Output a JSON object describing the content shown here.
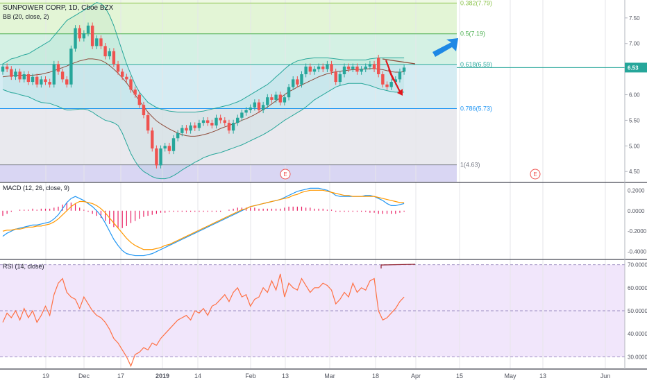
{
  "header": {
    "symbol_line": "SUNPOWER CORP, 1D, Cboe BZX",
    "indicator_line": "BB (20, close, 2)"
  },
  "macd_header": "MACD (12, 26, close, 9)",
  "rsi_header": "RSI (14, close)",
  "price_badge": "6.53",
  "earnings_marker": "E",
  "colors": {
    "up": "#26a69a",
    "down": "#ef5350",
    "bb_band": "#26a69a",
    "bb_basis": "#8d4a3a",
    "macd_line": "#2196f3",
    "signal_line": "#ff9800",
    "histogram": "#e91e63",
    "rsi_line": "#ff7043",
    "rsi_bg": "#f1e6fb",
    "annotation_red": "#e0171b",
    "annotation_blue": "#1e88e5"
  },
  "chart_data": [
    {
      "type": "candlestick",
      "title": "SUNPOWER CORP, 1D, Cboe BZX",
      "x_tick_labels": [
        "19",
        "Dec",
        "17",
        "2019",
        "14",
        "Feb",
        "13",
        "Mar",
        "18",
        "Apr",
        "15",
        "May",
        "13",
        "Jun"
      ],
      "y_tick_labels": [
        "7.50",
        "7.00",
        "6.50",
        "6.00",
        "5.50",
        "5.00",
        "4.50"
      ],
      "ylim": [
        4.3,
        7.85
      ],
      "fib_levels": [
        {
          "ratio": "0.382",
          "price": 7.79,
          "label": "0.382(7.79)",
          "color": "#8bc34a"
        },
        {
          "ratio": "0.5",
          "price": 7.19,
          "label": "0.5(7.19)",
          "color": "#4caf50"
        },
        {
          "ratio": "0.618",
          "price": 6.59,
          "label": "0.618(6.59)",
          "color": "#26a69a"
        },
        {
          "ratio": "0.786",
          "price": 5.73,
          "label": "0.786(5.73)",
          "color": "#2196f3"
        },
        {
          "ratio": "1",
          "price": 4.63,
          "label": "1(4.63)",
          "color": "#787b86"
        }
      ],
      "series": [
        {
          "name": "price",
          "close": [
            6.55,
            6.5,
            6.35,
            6.45,
            6.3,
            6.4,
            6.25,
            6.35,
            6.2,
            6.3,
            6.25,
            6.2,
            6.6,
            6.45,
            6.3,
            6.2,
            6.9,
            7.3,
            7.1,
            7.2,
            7.35,
            6.95,
            7.1,
            6.95,
            6.75,
            6.85,
            6.6,
            6.45,
            6.35,
            6.3,
            6.1,
            6.0,
            5.8,
            5.6,
            5.3,
            4.95,
            4.62,
            4.95,
            5.0,
            4.9,
            5.15,
            5.25,
            5.35,
            5.3,
            5.4,
            5.35,
            5.45,
            5.5,
            5.45,
            5.4,
            5.55,
            5.5,
            5.45,
            5.3,
            5.45,
            5.55,
            5.65,
            5.7,
            5.75,
            5.85,
            5.7,
            5.8,
            5.95,
            5.9,
            6.0,
            5.85,
            5.95,
            6.15,
            6.3,
            6.2,
            6.4,
            6.55,
            6.45,
            6.5,
            6.55,
            6.5,
            6.6,
            6.45,
            6.25,
            6.4,
            6.55,
            6.5,
            6.55,
            6.45,
            6.5,
            6.55,
            6.6,
            6.5,
            6.4,
            6.2,
            6.15,
            6.25,
            6.3,
            6.45,
            6.53
          ],
          "open": [
            6.45,
            6.55,
            6.5,
            6.35,
            6.45,
            6.3,
            6.4,
            6.25,
            6.35,
            6.2,
            6.3,
            6.25,
            6.2,
            6.6,
            6.45,
            6.3,
            6.2,
            6.9,
            7.3,
            7.1,
            7.2,
            7.35,
            6.95,
            7.1,
            6.95,
            6.75,
            6.85,
            6.6,
            6.45,
            6.35,
            6.3,
            6.1,
            6.0,
            5.8,
            5.6,
            5.3,
            4.95,
            4.62,
            4.95,
            5.0,
            4.9,
            5.15,
            5.25,
            5.35,
            5.3,
            5.4,
            5.35,
            5.45,
            5.5,
            5.45,
            5.4,
            5.55,
            5.5,
            5.45,
            5.3,
            5.45,
            5.55,
            5.65,
            5.7,
            5.75,
            5.85,
            5.7,
            5.8,
            5.95,
            5.9,
            6.0,
            5.85,
            5.95,
            6.15,
            6.3,
            6.2,
            6.4,
            6.55,
            6.45,
            6.5,
            6.55,
            6.5,
            6.6,
            6.45,
            6.25,
            6.4,
            6.55,
            6.5,
            6.55,
            6.45,
            6.5,
            6.55,
            6.6,
            6.72,
            6.4,
            6.2,
            6.15,
            6.25,
            6.3,
            6.45
          ]
        },
        {
          "name": "bb_upper",
          "values": [
            6.6,
            6.65,
            6.7,
            6.72,
            6.75,
            6.78,
            6.8,
            6.85,
            6.9,
            6.95,
            7.0,
            7.05,
            7.15,
            7.25,
            7.35,
            7.45,
            7.5,
            7.55,
            7.6,
            7.65,
            7.7,
            7.75,
            7.8,
            7.78,
            7.7,
            7.55,
            7.35,
            7.1,
            6.85,
            6.6,
            6.4,
            6.2,
            6.05,
            5.95,
            5.85,
            5.8,
            5.75,
            5.72,
            5.7,
            5.68,
            5.67,
            5.66,
            5.66,
            5.66,
            5.66,
            5.66,
            5.67,
            5.68,
            5.7,
            5.72,
            5.74,
            5.76,
            5.78,
            5.8,
            5.83,
            5.86,
            5.9,
            5.95,
            6.0,
            6.05,
            6.1,
            6.15,
            6.2,
            6.27,
            6.35,
            6.42,
            6.5,
            6.57,
            6.62,
            6.66,
            6.68,
            6.7,
            6.71,
            6.72,
            6.72,
            6.72,
            6.72,
            6.71,
            6.7,
            6.69,
            6.68,
            6.68,
            6.68,
            6.68,
            6.68,
            6.68,
            6.7,
            6.71,
            6.72,
            6.72,
            6.72,
            6.72,
            6.72,
            6.72,
            6.72
          ]
        },
        {
          "name": "bb_basis",
          "values": [
            6.35,
            6.36,
            6.37,
            6.38,
            6.38,
            6.38,
            6.38,
            6.38,
            6.39,
            6.4,
            6.42,
            6.44,
            6.47,
            6.5,
            6.53,
            6.56,
            6.6,
            6.63,
            6.66,
            6.68,
            6.7,
            6.7,
            6.69,
            6.67,
            6.63,
            6.57,
            6.5,
            6.42,
            6.33,
            6.23,
            6.12,
            6.0,
            5.88,
            5.77,
            5.66,
            5.57,
            5.49,
            5.43,
            5.38,
            5.33,
            5.29,
            5.25,
            5.22,
            5.2,
            5.19,
            5.19,
            5.2,
            5.22,
            5.24,
            5.27,
            5.3,
            5.34,
            5.37,
            5.4,
            5.43,
            5.46,
            5.5,
            5.53,
            5.57,
            5.61,
            5.66,
            5.71,
            5.76,
            5.82,
            5.88,
            5.94,
            6.0,
            6.06,
            6.1,
            6.15,
            6.19,
            6.23,
            6.27,
            6.31,
            6.35,
            6.38,
            6.41,
            6.43,
            6.45,
            6.46,
            6.47,
            6.48,
            6.49,
            6.49,
            6.5,
            6.5,
            6.51,
            6.51,
            6.5,
            6.49,
            6.47,
            6.45,
            6.44,
            6.44,
            6.45
          ]
        },
        {
          "name": "bb_lower",
          "values": [
            6.1,
            6.07,
            6.04,
            6.03,
            6.0,
            5.98,
            5.96,
            5.92,
            5.88,
            5.85,
            5.84,
            5.83,
            5.8,
            5.77,
            5.73,
            5.7,
            5.7,
            5.71,
            5.72,
            5.72,
            5.7,
            5.66,
            5.6,
            5.55,
            5.5,
            5.48,
            5.45,
            5.4,
            5.25,
            5.05,
            4.85,
            4.7,
            4.58,
            4.5,
            4.45,
            4.4,
            4.37,
            4.36,
            4.36,
            4.38,
            4.42,
            4.47,
            4.53,
            4.58,
            4.63,
            4.68,
            4.72,
            4.77,
            4.8,
            4.83,
            4.85,
            4.87,
            4.9,
            4.93,
            4.96,
            4.99,
            5.02,
            5.06,
            5.1,
            5.14,
            5.18,
            5.22,
            5.27,
            5.32,
            5.38,
            5.44,
            5.5,
            5.55,
            5.6,
            5.65,
            5.7,
            5.76,
            5.83,
            5.9,
            5.95,
            6.0,
            6.05,
            6.1,
            6.15,
            6.18,
            6.2,
            6.22,
            6.22,
            6.22,
            6.22,
            6.2,
            6.18,
            6.15,
            6.12,
            6.1,
            6.08,
            6.06,
            6.05,
            6.05,
            6.05
          ]
        }
      ]
    },
    {
      "type": "line",
      "title": "MACD (12, 26, close, 9)",
      "y_tick_labels": [
        "0.2000",
        "0.0000",
        "-0.2000",
        "-0.4000"
      ],
      "ylim": [
        -0.47,
        0.27
      ],
      "series": [
        {
          "name": "macd",
          "values": [
            -0.25,
            -0.22,
            -0.2,
            -0.18,
            -0.17,
            -0.16,
            -0.15,
            -0.14,
            -0.14,
            -0.13,
            -0.12,
            -0.11,
            -0.08,
            -0.04,
            0.02,
            0.08,
            0.12,
            0.14,
            0.12,
            0.1,
            0.07,
            0.04,
            0.0,
            -0.05,
            -0.12,
            -0.2,
            -0.28,
            -0.34,
            -0.39,
            -0.42,
            -0.43,
            -0.44,
            -0.44,
            -0.44,
            -0.43,
            -0.42,
            -0.4,
            -0.38,
            -0.36,
            -0.34,
            -0.32,
            -0.3,
            -0.28,
            -0.26,
            -0.24,
            -0.22,
            -0.2,
            -0.18,
            -0.16,
            -0.14,
            -0.12,
            -0.1,
            -0.08,
            -0.06,
            -0.04,
            -0.02,
            0.0,
            0.02,
            0.04,
            0.05,
            0.06,
            0.07,
            0.08,
            0.09,
            0.1,
            0.11,
            0.13,
            0.15,
            0.17,
            0.19,
            0.2,
            0.21,
            0.22,
            0.22,
            0.22,
            0.21,
            0.2,
            0.18,
            0.15,
            0.14,
            0.14,
            0.14,
            0.14,
            0.14,
            0.14,
            0.15,
            0.15,
            0.14,
            0.12,
            0.1,
            0.07,
            0.05,
            0.05,
            0.06,
            0.07
          ]
        },
        {
          "name": "signal",
          "values": [
            -0.2,
            -0.19,
            -0.19,
            -0.18,
            -0.18,
            -0.17,
            -0.16,
            -0.16,
            -0.15,
            -0.15,
            -0.14,
            -0.13,
            -0.11,
            -0.08,
            -0.04,
            0.0,
            0.04,
            0.07,
            0.09,
            0.09,
            0.08,
            0.07,
            0.05,
            0.02,
            -0.02,
            -0.07,
            -0.12,
            -0.17,
            -0.22,
            -0.27,
            -0.31,
            -0.34,
            -0.36,
            -0.38,
            -0.38,
            -0.38,
            -0.37,
            -0.36,
            -0.34,
            -0.33,
            -0.31,
            -0.29,
            -0.27,
            -0.25,
            -0.23,
            -0.21,
            -0.19,
            -0.17,
            -0.15,
            -0.13,
            -0.11,
            -0.09,
            -0.07,
            -0.05,
            -0.03,
            -0.01,
            0.01,
            0.02,
            0.04,
            0.05,
            0.06,
            0.07,
            0.08,
            0.09,
            0.1,
            0.11,
            0.12,
            0.13,
            0.15,
            0.16,
            0.18,
            0.19,
            0.2,
            0.2,
            0.2,
            0.2,
            0.19,
            0.18,
            0.17,
            0.16,
            0.15,
            0.15,
            0.14,
            0.14,
            0.14,
            0.14,
            0.14,
            0.14,
            0.13,
            0.12,
            0.11,
            0.1,
            0.09,
            0.08,
            0.08
          ]
        },
        {
          "name": "histogram",
          "values": [
            -0.05,
            -0.03,
            -0.01,
            0.0,
            0.01,
            0.01,
            0.01,
            0.02,
            0.01,
            0.02,
            0.02,
            0.02,
            0.03,
            0.04,
            0.06,
            0.08,
            0.08,
            0.07,
            0.03,
            0.01,
            -0.01,
            -0.03,
            -0.05,
            -0.07,
            -0.1,
            -0.13,
            -0.16,
            -0.17,
            -0.17,
            -0.15,
            -0.12,
            -0.1,
            -0.08,
            -0.06,
            -0.05,
            -0.04,
            -0.03,
            -0.02,
            -0.02,
            -0.01,
            -0.01,
            -0.01,
            -0.01,
            -0.01,
            -0.01,
            -0.01,
            -0.01,
            -0.01,
            -0.01,
            -0.01,
            -0.01,
            -0.01,
            0.0,
            0.01,
            0.02,
            0.03,
            0.03,
            0.03,
            0.03,
            0.03,
            0.02,
            0.02,
            0.02,
            0.02,
            0.02,
            0.02,
            0.03,
            0.04,
            0.04,
            0.04,
            0.04,
            0.03,
            0.03,
            0.02,
            0.02,
            0.02,
            0.01,
            0.01,
            -0.01,
            -0.01,
            -0.01,
            -0.01,
            -0.01,
            -0.01,
            -0.01,
            -0.01,
            -0.02,
            -0.02,
            -0.03,
            -0.03,
            -0.03,
            -0.03,
            -0.03,
            -0.02,
            -0.01
          ]
        }
      ]
    },
    {
      "type": "line",
      "title": "RSI (14, close)",
      "y_tick_labels": [
        "70.0000",
        "60.0000",
        "50.0000",
        "40.0000",
        "30.0000"
      ],
      "ylim": [
        25,
        72
      ],
      "bands": {
        "upper": 70,
        "lower": 30
      },
      "series": [
        {
          "name": "rsi",
          "values": [
            45,
            49,
            47,
            50,
            46,
            51,
            47,
            50,
            45,
            48,
            52,
            48,
            57,
            62,
            64,
            58,
            56,
            55,
            51,
            56,
            53,
            50,
            48,
            47,
            45,
            42,
            38,
            36,
            33,
            30,
            26,
            31,
            32,
            34,
            33,
            36,
            35,
            38,
            40,
            42,
            44,
            46,
            47,
            48,
            46,
            50,
            49,
            51,
            48,
            52,
            53,
            55,
            57,
            54,
            58,
            60,
            56,
            57,
            52,
            55,
            56,
            60,
            58,
            63,
            59,
            66,
            56,
            62,
            60,
            59,
            64,
            61,
            58,
            60,
            60,
            62,
            61,
            59,
            53,
            55,
            58,
            56,
            62,
            58,
            60,
            59,
            63,
            64,
            50,
            46,
            47,
            49,
            51,
            54,
            56
          ]
        }
      ]
    }
  ]
}
